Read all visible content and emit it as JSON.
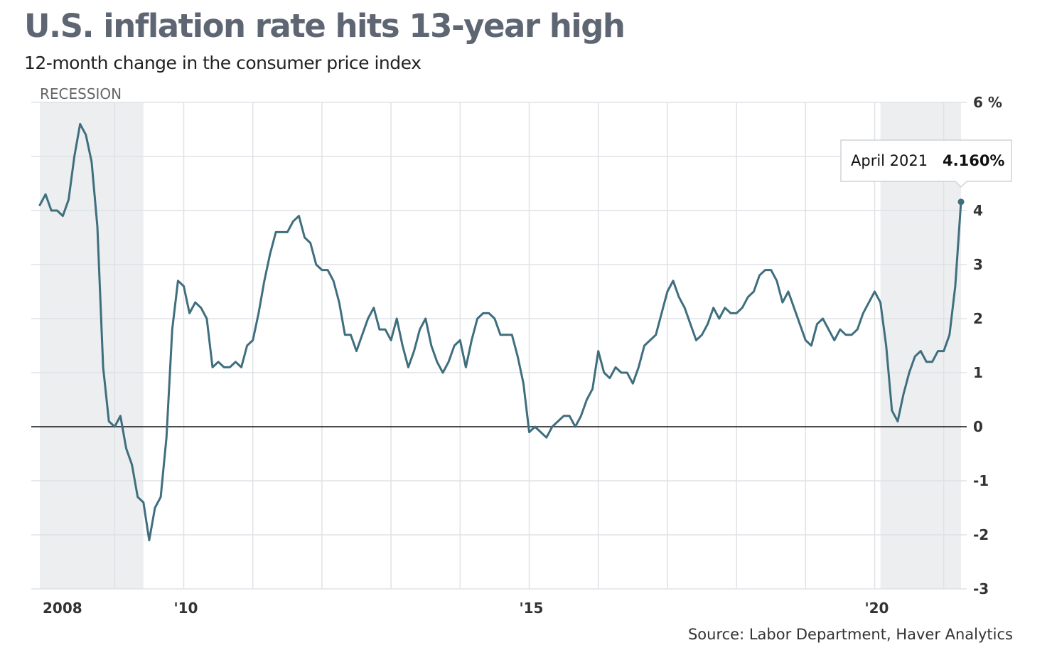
{
  "chart_data": {
    "type": "line",
    "title": "U.S. inflation rate hits 13-year high",
    "subtitle": "12-month change in the consumer price index",
    "source": "Source: Labor Department, Haver Analytics",
    "recession_label": "RECESSION",
    "ylim": [
      -3,
      6
    ],
    "y_ticks": [
      -3,
      -2,
      -1,
      0,
      1,
      2,
      3,
      4,
      5,
      6
    ],
    "y_tick_labels": [
      "-3",
      "-2",
      "-1",
      "0",
      "1",
      "2",
      "3",
      "4",
      "",
      "6 %"
    ],
    "x_range": [
      "2007-12",
      "2021-04"
    ],
    "x_ticks": [
      {
        "date": "2008-01",
        "label": "2008"
      },
      {
        "date": "2010-01",
        "label": "'10"
      },
      {
        "date": "2015-01",
        "label": "'15"
      },
      {
        "date": "2020-01",
        "label": "'20"
      }
    ],
    "x_gridlines": [
      "2009-01",
      "2010-01",
      "2011-01",
      "2012-01",
      "2013-01",
      "2014-01",
      "2015-01",
      "2016-01",
      "2017-01",
      "2018-01",
      "2019-01",
      "2020-01",
      "2021-01"
    ],
    "recessions": [
      {
        "start": "2007-12",
        "end": "2009-06"
      },
      {
        "start": "2020-02",
        "end": "2021-04"
      }
    ],
    "zero_line": true,
    "series": [
      {
        "name": "CPI 12-month change (%)",
        "color": "#3f6e7e",
        "start": "2007-12",
        "values": [
          4.1,
          4.3,
          4.0,
          4.0,
          3.9,
          4.2,
          5.0,
          5.6,
          5.4,
          4.9,
          3.7,
          1.1,
          0.1,
          0.0,
          0.2,
          -0.4,
          -0.7,
          -1.3,
          -1.4,
          -2.1,
          -1.5,
          -1.3,
          -0.2,
          1.8,
          2.7,
          2.6,
          2.1,
          2.3,
          2.2,
          2.0,
          1.1,
          1.2,
          1.1,
          1.1,
          1.2,
          1.1,
          1.5,
          1.6,
          2.1,
          2.7,
          3.2,
          3.6,
          3.6,
          3.6,
          3.8,
          3.9,
          3.5,
          3.4,
          3.0,
          2.9,
          2.9,
          2.7,
          2.3,
          1.7,
          1.7,
          1.4,
          1.7,
          2.0,
          2.2,
          1.8,
          1.8,
          1.6,
          2.0,
          1.5,
          1.1,
          1.4,
          1.8,
          2.0,
          1.5,
          1.2,
          1.0,
          1.2,
          1.5,
          1.6,
          1.1,
          1.6,
          2.0,
          2.1,
          2.1,
          2.0,
          1.7,
          1.7,
          1.7,
          1.3,
          0.8,
          -0.1,
          0.0,
          -0.1,
          -0.2,
          0.0,
          0.1,
          0.2,
          0.2,
          0.0,
          0.2,
          0.5,
          0.7,
          1.4,
          1.0,
          0.9,
          1.1,
          1.0,
          1.0,
          0.8,
          1.1,
          1.5,
          1.6,
          1.7,
          2.1,
          2.5,
          2.7,
          2.4,
          2.2,
          1.9,
          1.6,
          1.7,
          1.9,
          2.2,
          2.0,
          2.2,
          2.1,
          2.1,
          2.2,
          2.4,
          2.5,
          2.8,
          2.9,
          2.9,
          2.7,
          2.3,
          2.5,
          2.2,
          1.9,
          1.6,
          1.5,
          1.9,
          2.0,
          1.8,
          1.6,
          1.8,
          1.7,
          1.7,
          1.8,
          2.1,
          2.3,
          2.5,
          2.3,
          1.5,
          0.3,
          0.1,
          0.6,
          1.0,
          1.3,
          1.4,
          1.2,
          1.2,
          1.4,
          1.4,
          1.7,
          2.6,
          4.16
        ]
      }
    ],
    "annotation": {
      "date": "2021-04",
      "label": "April 2021",
      "value_text": "4.160%",
      "value": 4.16
    }
  }
}
